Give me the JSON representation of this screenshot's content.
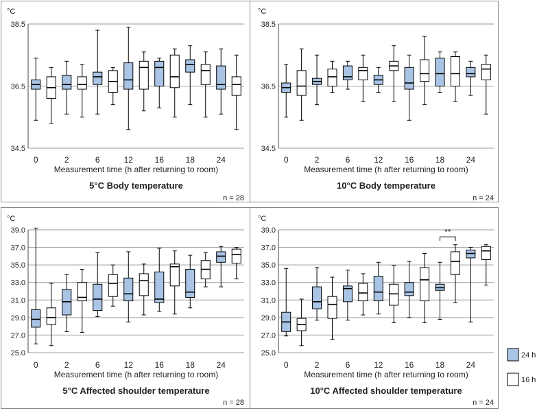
{
  "legend": {
    "items": [
      {
        "label": "24 h",
        "color": "#a9c4e4"
      },
      {
        "label": "16 h",
        "color": "#ffffff"
      }
    ]
  },
  "chart_data": [
    {
      "type": "boxplot",
      "title": "5°C Body temperature",
      "unit": "°C",
      "xlabel": "Measurement time (h after returning to room)",
      "n_label": "n = 28",
      "yticks": [
        "34.5",
        "36.5",
        "38.5"
      ],
      "ylim": [
        34.5,
        38.5
      ],
      "xticks": [
        "0",
        "2",
        "6",
        "12",
        "16",
        "18",
        "24"
      ],
      "annotation": "",
      "boxes": [
        {
          "pos": 0,
          "group": "24 h",
          "min": 35.4,
          "q1": 36.4,
          "median": 36.55,
          "q3": 36.7,
          "max": 37.4
        },
        {
          "pos": 1,
          "group": "16 h",
          "min": 35.3,
          "q1": 36.1,
          "median": 36.45,
          "q3": 36.8,
          "max": 37.1
        },
        {
          "pos": 2,
          "group": "24 h",
          "min": 35.6,
          "q1": 36.4,
          "median": 36.55,
          "q3": 36.85,
          "max": 37.3
        },
        {
          "pos": 3,
          "group": "16 h",
          "min": 35.5,
          "q1": 36.4,
          "median": 36.55,
          "q3": 36.8,
          "max": 37.2
        },
        {
          "pos": 4,
          "group": "24 h",
          "min": 35.6,
          "q1": 36.55,
          "median": 36.8,
          "q3": 36.95,
          "max": 38.3
        },
        {
          "pos": 5,
          "group": "16 h",
          "min": 35.9,
          "q1": 36.3,
          "median": 36.65,
          "q3": 37.0,
          "max": 37.1
        },
        {
          "pos": 6,
          "group": "24 h",
          "min": 35.1,
          "q1": 36.4,
          "median": 36.7,
          "q3": 37.25,
          "max": 38.4
        },
        {
          "pos": 7,
          "group": "16 h",
          "min": 35.7,
          "q1": 36.4,
          "median": 37.1,
          "q3": 37.3,
          "max": 37.6
        },
        {
          "pos": 8,
          "group": "24 h",
          "min": 35.8,
          "q1": 36.5,
          "median": 37.1,
          "q3": 37.3,
          "max": 37.4
        },
        {
          "pos": 9,
          "group": "16 h",
          "min": 35.5,
          "q1": 36.45,
          "median": 36.8,
          "q3": 37.5,
          "max": 37.7
        },
        {
          "pos": 10,
          "group": "24 h",
          "min": 35.9,
          "q1": 36.95,
          "median": 37.2,
          "q3": 37.35,
          "max": 37.8
        },
        {
          "pos": 11,
          "group": "16 h",
          "min": 35.5,
          "q1": 36.55,
          "median": 37.0,
          "q3": 37.2,
          "max": 37.6
        },
        {
          "pos": 12,
          "group": "24 h",
          "min": 35.6,
          "q1": 36.4,
          "median": 36.55,
          "q3": 37.15,
          "max": 37.7
        },
        {
          "pos": 13,
          "group": "16 h",
          "min": 35.1,
          "q1": 36.2,
          "median": 36.55,
          "q3": 36.8,
          "max": 37.5
        }
      ]
    },
    {
      "type": "boxplot",
      "title": "10°C Body temperature",
      "unit": "°C",
      "xlabel": "Measurement time (h after returning to room)",
      "n_label": "n = 24",
      "yticks": [
        "34.5",
        "36.5",
        "38.5"
      ],
      "ylim": [
        34.5,
        38.5
      ],
      "xticks": [
        "0",
        "2",
        "6",
        "12",
        "16",
        "18",
        "24"
      ],
      "annotation": "",
      "boxes": [
        {
          "pos": 0,
          "group": "24 h",
          "min": 35.5,
          "q1": 36.3,
          "median": 36.45,
          "q3": 36.6,
          "max": 37.2
        },
        {
          "pos": 1,
          "group": "16 h",
          "min": 35.4,
          "q1": 36.2,
          "median": 36.5,
          "q3": 37.0,
          "max": 37.7
        },
        {
          "pos": 2,
          "group": "24 h",
          "min": 35.9,
          "q1": 36.55,
          "median": 36.65,
          "q3": 36.75,
          "max": 37.5
        },
        {
          "pos": 3,
          "group": "16 h",
          "min": 36.3,
          "q1": 36.5,
          "median": 36.8,
          "q3": 37.05,
          "max": 37.3
        },
        {
          "pos": 4,
          "group": "24 h",
          "min": 36.4,
          "q1": 36.7,
          "median": 36.8,
          "q3": 37.15,
          "max": 37.3
        },
        {
          "pos": 5,
          "group": "16 h",
          "min": 36.0,
          "q1": 36.7,
          "median": 37.0,
          "q3": 37.1,
          "max": 37.5
        },
        {
          "pos": 6,
          "group": "24 h",
          "min": 36.3,
          "q1": 36.55,
          "median": 36.7,
          "q3": 36.85,
          "max": 37.1
        },
        {
          "pos": 7,
          "group": "16 h",
          "min": 36.0,
          "q1": 37.0,
          "median": 37.15,
          "q3": 37.3,
          "max": 37.8
        },
        {
          "pos": 8,
          "group": "24 h",
          "min": 35.4,
          "q1": 36.4,
          "median": 36.6,
          "q3": 37.1,
          "max": 37.5
        },
        {
          "pos": 9,
          "group": "16 h",
          "min": 35.9,
          "q1": 36.65,
          "median": 36.9,
          "q3": 37.35,
          "max": 38.1
        },
        {
          "pos": 10,
          "group": "24 h",
          "min": 36.3,
          "q1": 36.5,
          "median": 36.9,
          "q3": 37.4,
          "max": 37.6
        },
        {
          "pos": 11,
          "group": "16 h",
          "min": 36.0,
          "q1": 36.5,
          "median": 36.9,
          "q3": 37.45,
          "max": 37.6
        },
        {
          "pos": 12,
          "group": "24 h",
          "min": 36.2,
          "q1": 36.8,
          "median": 36.9,
          "q3": 37.1,
          "max": 37.3
        },
        {
          "pos": 13,
          "group": "16 h",
          "min": 35.6,
          "q1": 36.7,
          "median": 37.05,
          "q3": 37.2,
          "max": 37.5
        }
      ]
    },
    {
      "type": "boxplot",
      "title": "5°C Affected shoulder temperature",
      "unit": "°C",
      "xlabel": "Measurement time (h after returning to room)",
      "n_label": "n = 28",
      "yticks": [
        "25.0",
        "27.0",
        "29.0",
        "31.0",
        "33.0",
        "35.0",
        "37.0",
        "39.0"
      ],
      "ylim": [
        25.0,
        39.0
      ],
      "xticks": [
        "0",
        "2",
        "6",
        "12",
        "16",
        "18",
        "24"
      ],
      "annotation": "",
      "boxes": [
        {
          "pos": 0,
          "group": "24 h",
          "min": 26.0,
          "q1": 27.9,
          "median": 28.8,
          "q3": 29.9,
          "max": 39.2
        },
        {
          "pos": 1,
          "group": "16 h",
          "min": 25.8,
          "q1": 28.2,
          "median": 29.0,
          "q3": 30.1,
          "max": 32.9
        },
        {
          "pos": 2,
          "group": "24 h",
          "min": 27.4,
          "q1": 29.3,
          "median": 30.8,
          "q3": 32.2,
          "max": 33.9
        },
        {
          "pos": 3,
          "group": "16 h",
          "min": 27.3,
          "q1": 30.9,
          "median": 31.3,
          "q3": 33.0,
          "max": 34.5
        },
        {
          "pos": 4,
          "group": "24 h",
          "min": 29.1,
          "q1": 29.8,
          "median": 31.1,
          "q3": 32.8,
          "max": 36.4
        },
        {
          "pos": 5,
          "group": "16 h",
          "min": 30.3,
          "q1": 31.4,
          "median": 32.9,
          "q3": 33.9,
          "max": 35.0
        },
        {
          "pos": 6,
          "group": "24 h",
          "min": 28.5,
          "q1": 30.9,
          "median": 31.7,
          "q3": 33.5,
          "max": 36.5
        },
        {
          "pos": 7,
          "group": "16 h",
          "min": 29.3,
          "q1": 31.5,
          "median": 33.2,
          "q3": 34.0,
          "max": 35.1
        },
        {
          "pos": 8,
          "group": "24 h",
          "min": 29.7,
          "q1": 30.7,
          "median": 31.1,
          "q3": 34.2,
          "max": 36.9
        },
        {
          "pos": 9,
          "group": "16 h",
          "min": 29.4,
          "q1": 32.6,
          "median": 34.8,
          "q3": 35.1,
          "max": 36.6
        },
        {
          "pos": 10,
          "group": "24 h",
          "min": 30.1,
          "q1": 31.3,
          "median": 31.9,
          "q3": 34.5,
          "max": 36.1
        },
        {
          "pos": 11,
          "group": "16 h",
          "min": 32.5,
          "q1": 33.4,
          "median": 34.5,
          "q3": 35.5,
          "max": 36.4
        },
        {
          "pos": 12,
          "group": "24 h",
          "min": 32.5,
          "q1": 35.3,
          "median": 36.0,
          "q3": 36.5,
          "max": 37.1
        },
        {
          "pos": 13,
          "group": "16 h",
          "min": 33.4,
          "q1": 35.2,
          "median": 36.2,
          "q3": 36.8,
          "max": 37.0
        }
      ]
    },
    {
      "type": "boxplot",
      "title": "10°C Affected shoulder temperature",
      "unit": "°C",
      "xlabel": "Measurement time (h after returning to room)",
      "n_label": "n = 24",
      "yticks": [
        "25.0",
        "27.0",
        "29.0",
        "31.0",
        "33.0",
        "35.0",
        "37.0",
        "39.0"
      ],
      "ylim": [
        25.0,
        39.0
      ],
      "xticks": [
        "0",
        "2",
        "6",
        "12",
        "16",
        "18",
        "24"
      ],
      "annotation": "**",
      "boxes": [
        {
          "pos": 0,
          "group": "24 h",
          "min": 26.9,
          "q1": 27.4,
          "median": 28.5,
          "q3": 29.6,
          "max": 34.6
        },
        {
          "pos": 1,
          "group": "16 h",
          "min": 25.8,
          "q1": 27.5,
          "median": 28.2,
          "q3": 28.9,
          "max": 31.1
        },
        {
          "pos": 2,
          "group": "24 h",
          "min": 28.7,
          "q1": 30.0,
          "median": 30.8,
          "q3": 32.5,
          "max": 34.7
        },
        {
          "pos": 3,
          "group": "16 h",
          "min": 26.5,
          "q1": 28.9,
          "median": 30.5,
          "q3": 31.4,
          "max": 33.6
        },
        {
          "pos": 4,
          "group": "24 h",
          "min": 28.7,
          "q1": 30.8,
          "median": 32.3,
          "q3": 32.6,
          "max": 34.4
        },
        {
          "pos": 5,
          "group": "16 h",
          "min": 29.3,
          "q1": 30.9,
          "median": 31.8,
          "q3": 32.9,
          "max": 34.0
        },
        {
          "pos": 6,
          "group": "24 h",
          "min": 29.4,
          "q1": 30.9,
          "median": 31.9,
          "q3": 33.7,
          "max": 35.3
        },
        {
          "pos": 7,
          "group": "16 h",
          "min": 28.4,
          "q1": 30.4,
          "median": 31.7,
          "q3": 32.8,
          "max": 34.9
        },
        {
          "pos": 8,
          "group": "24 h",
          "min": 29.0,
          "q1": 31.5,
          "median": 31.9,
          "q3": 33.0,
          "max": 35.4
        },
        {
          "pos": 9,
          "group": "16 h",
          "min": 28.4,
          "q1": 30.9,
          "median": 33.3,
          "q3": 34.7,
          "max": 36.3
        },
        {
          "pos": 10,
          "group": "24 h",
          "min": 28.8,
          "q1": 32.1,
          "median": 32.4,
          "q3": 32.8,
          "max": 35.3
        },
        {
          "pos": 11,
          "group": "16 h",
          "min": 30.7,
          "q1": 33.9,
          "median": 35.4,
          "q3": 36.5,
          "max": 37.3
        },
        {
          "pos": 12,
          "group": "24 h",
          "min": 28.5,
          "q1": 35.8,
          "median": 36.3,
          "q3": 36.7,
          "max": 37.0
        },
        {
          "pos": 13,
          "group": "16 h",
          "min": 32.7,
          "q1": 35.6,
          "median": 36.6,
          "q3": 37.1,
          "max": 37.3
        }
      ]
    }
  ]
}
